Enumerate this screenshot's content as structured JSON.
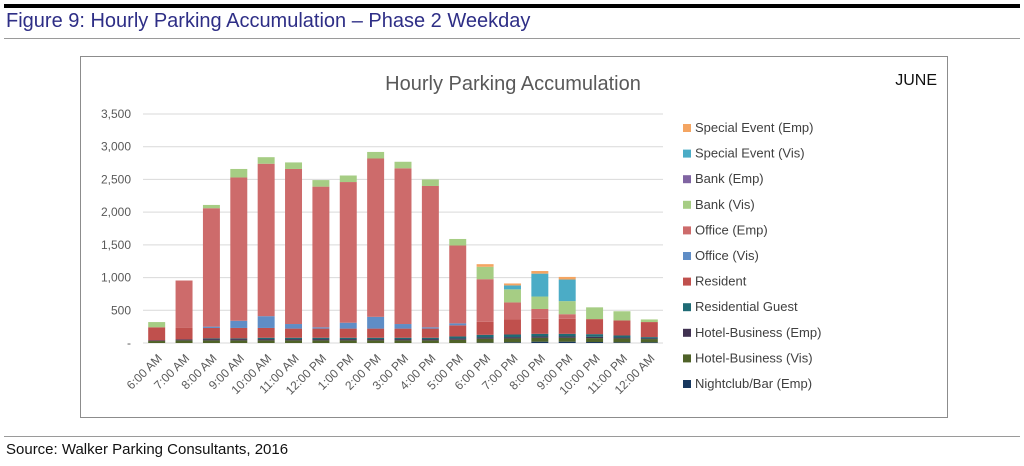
{
  "figure": {
    "title": "Figure 9: Hourly Parking Accumulation – Phase 2 Weekday",
    "source": "Source: Walker Parking Consultants, 2016"
  },
  "chart_data": {
    "type": "bar",
    "stacked": true,
    "title": "Hourly Parking Accumulation",
    "month_label": "JUNE",
    "xlabel": "",
    "ylabel": "",
    "ylim": [
      0,
      3500
    ],
    "yticks": [
      0,
      500,
      1000,
      1500,
      2000,
      2500,
      3000,
      3500
    ],
    "ytick_labels": [
      "-",
      "500",
      "1,000",
      "1,500",
      "2,000",
      "2,500",
      "3,000",
      "3,500"
    ],
    "grid": true,
    "legend_position": "right",
    "categories": [
      "6:00 AM",
      "7:00 AM",
      "8:00 AM",
      "9:00 AM",
      "10:00 AM",
      "11:00 AM",
      "12:00 PM",
      "1:00 PM",
      "2:00 PM",
      "3:00 PM",
      "4:00 PM",
      "5:00 PM",
      "6:00 PM",
      "7:00 PM",
      "8:00 PM",
      "9:00 PM",
      "10:00 PM",
      "11:00 PM",
      "12:00 AM"
    ],
    "series": [
      {
        "name": "Nightclub/Bar (Emp)",
        "color": "#17375e",
        "values": [
          0,
          0,
          0,
          0,
          0,
          0,
          0,
          0,
          0,
          0,
          0,
          0,
          5,
          10,
          20,
          20,
          15,
          10,
          10
        ]
      },
      {
        "name": "Hotel-Business (Vis)",
        "color": "#4f6228",
        "values": [
          30,
          40,
          40,
          40,
          40,
          40,
          40,
          40,
          40,
          40,
          40,
          50,
          60,
          60,
          60,
          60,
          60,
          60,
          50
        ]
      },
      {
        "name": "Hotel-Business (Emp)",
        "color": "#403151",
        "values": [
          10,
          15,
          20,
          20,
          20,
          20,
          20,
          20,
          20,
          20,
          20,
          20,
          20,
          20,
          20,
          20,
          20,
          15,
          10
        ]
      },
      {
        "name": "Residential Guest",
        "color": "#1f6b75",
        "values": [
          0,
          0,
          10,
          10,
          20,
          20,
          20,
          20,
          20,
          20,
          20,
          30,
          40,
          40,
          40,
          40,
          40,
          30,
          20
        ]
      },
      {
        "name": "Resident",
        "color": "#c0504d",
        "values": [
          200,
          180,
          160,
          160,
          150,
          140,
          140,
          140,
          140,
          140,
          140,
          170,
          200,
          230,
          230,
          230,
          230,
          230,
          230
        ]
      },
      {
        "name": "Office (Vis)",
        "color": "#5f8dc6",
        "values": [
          0,
          0,
          20,
          110,
          180,
          70,
          20,
          90,
          180,
          70,
          20,
          30,
          0,
          0,
          0,
          0,
          0,
          0,
          0
        ]
      },
      {
        "name": "Office (Emp)",
        "color": "#cd6b6b",
        "values": [
          0,
          720,
          1810,
          2190,
          2330,
          2370,
          2150,
          2150,
          2420,
          2380,
          2160,
          1190,
          650,
          260,
          150,
          70,
          0,
          0,
          0
        ]
      },
      {
        "name": "Bank (Vis)",
        "color": "#a6cd84",
        "values": [
          80,
          0,
          50,
          130,
          100,
          100,
          100,
          100,
          100,
          100,
          100,
          100,
          190,
          200,
          190,
          200,
          180,
          140,
          40
        ]
      },
      {
        "name": "Bank (Emp)",
        "color": "#8064a2",
        "values": [
          0,
          0,
          0,
          0,
          0,
          0,
          0,
          0,
          0,
          0,
          0,
          0,
          0,
          0,
          0,
          0,
          0,
          0,
          0
        ]
      },
      {
        "name": "Special Event (Vis)",
        "color": "#4bacc6",
        "values": [
          0,
          0,
          0,
          0,
          0,
          0,
          0,
          0,
          0,
          0,
          0,
          0,
          0,
          60,
          350,
          330,
          0,
          0,
          0
        ]
      },
      {
        "name": "Special Event (Emp)",
        "color": "#f4a562",
        "values": [
          0,
          0,
          0,
          0,
          0,
          0,
          0,
          0,
          0,
          0,
          0,
          0,
          40,
          30,
          40,
          40,
          0,
          0,
          0
        ]
      }
    ],
    "legend_order": [
      "Special Event (Emp)",
      "Special Event (Vis)",
      "Bank (Emp)",
      "Bank (Vis)",
      "Office (Emp)",
      "Office (Vis)",
      "Resident",
      "Residential Guest",
      "Hotel-Business (Emp)",
      "Hotel-Business (Vis)",
      "Nightclub/Bar (Emp)"
    ]
  }
}
